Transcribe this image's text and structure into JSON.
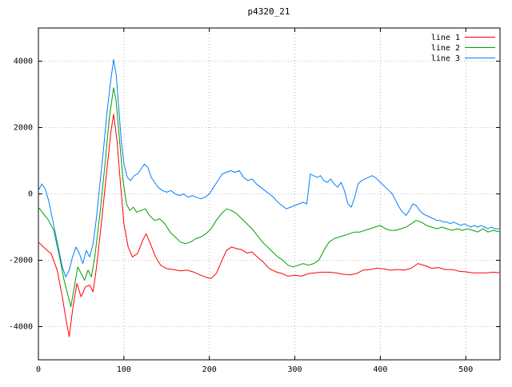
{
  "window": {
    "background": "#ffffff"
  },
  "chart_data": {
    "type": "line",
    "title": "p4320_21",
    "xlabel": "",
    "ylabel": "",
    "xlim": [
      0,
      540
    ],
    "ylim": [
      -5000,
      5000
    ],
    "xticks": [
      0,
      100,
      200,
      300,
      400,
      500
    ],
    "yticks": [
      -4000,
      -2000,
      0,
      2000,
      4000
    ],
    "grid": true,
    "grid_color": "#b8b8b8",
    "border_color": "#000000",
    "legend_position": "top-right",
    "series": [
      {
        "name": "line 1",
        "color": "#ff0000",
        "points": [
          [
            0,
            -1450
          ],
          [
            8,
            -1650
          ],
          [
            15,
            -1800
          ],
          [
            22,
            -2300
          ],
          [
            28,
            -3100
          ],
          [
            33,
            -3900
          ],
          [
            36,
            -4300
          ],
          [
            40,
            -3500
          ],
          [
            45,
            -2700
          ],
          [
            50,
            -3100
          ],
          [
            55,
            -2800
          ],
          [
            60,
            -2750
          ],
          [
            64,
            -2950
          ],
          [
            68,
            -2200
          ],
          [
            74,
            -800
          ],
          [
            80,
            700
          ],
          [
            85,
            1900
          ],
          [
            88,
            2400
          ],
          [
            92,
            1600
          ],
          [
            96,
            300
          ],
          [
            100,
            -900
          ],
          [
            105,
            -1600
          ],
          [
            110,
            -1900
          ],
          [
            116,
            -1800
          ],
          [
            122,
            -1400
          ],
          [
            126,
            -1200
          ],
          [
            131,
            -1500
          ],
          [
            137,
            -1900
          ],
          [
            143,
            -2150
          ],
          [
            150,
            -2250
          ],
          [
            158,
            -2280
          ],
          [
            166,
            -2320
          ],
          [
            174,
            -2300
          ],
          [
            182,
            -2360
          ],
          [
            190,
            -2450
          ],
          [
            197,
            -2520
          ],
          [
            202,
            -2550
          ],
          [
            208,
            -2400
          ],
          [
            214,
            -2050
          ],
          [
            220,
            -1700
          ],
          [
            226,
            -1600
          ],
          [
            232,
            -1650
          ],
          [
            238,
            -1680
          ],
          [
            244,
            -1780
          ],
          [
            250,
            -1750
          ],
          [
            256,
            -1900
          ],
          [
            263,
            -2050
          ],
          [
            270,
            -2250
          ],
          [
            278,
            -2350
          ],
          [
            285,
            -2400
          ],
          [
            292,
            -2480
          ],
          [
            300,
            -2450
          ],
          [
            308,
            -2480
          ],
          [
            316,
            -2400
          ],
          [
            324,
            -2380
          ],
          [
            332,
            -2360
          ],
          [
            340,
            -2360
          ],
          [
            348,
            -2380
          ],
          [
            356,
            -2420
          ],
          [
            364,
            -2440
          ],
          [
            372,
            -2400
          ],
          [
            380,
            -2300
          ],
          [
            388,
            -2280
          ],
          [
            396,
            -2240
          ],
          [
            404,
            -2260
          ],
          [
            412,
            -2300
          ],
          [
            420,
            -2280
          ],
          [
            428,
            -2300
          ],
          [
            436,
            -2240
          ],
          [
            444,
            -2100
          ],
          [
            452,
            -2160
          ],
          [
            460,
            -2240
          ],
          [
            468,
            -2220
          ],
          [
            476,
            -2280
          ],
          [
            484,
            -2280
          ],
          [
            492,
            -2330
          ],
          [
            500,
            -2350
          ],
          [
            508,
            -2380
          ],
          [
            516,
            -2380
          ],
          [
            524,
            -2380
          ],
          [
            532,
            -2360
          ],
          [
            540,
            -2380
          ]
        ]
      },
      {
        "name": "line 2",
        "color": "#00a000",
        "points": [
          [
            0,
            -400
          ],
          [
            6,
            -600
          ],
          [
            12,
            -800
          ],
          [
            18,
            -1100
          ],
          [
            24,
            -1800
          ],
          [
            30,
            -2600
          ],
          [
            35,
            -3100
          ],
          [
            38,
            -3400
          ],
          [
            42,
            -2800
          ],
          [
            46,
            -2200
          ],
          [
            50,
            -2400
          ],
          [
            54,
            -2600
          ],
          [
            58,
            -2300
          ],
          [
            62,
            -2500
          ],
          [
            66,
            -1900
          ],
          [
            72,
            -600
          ],
          [
            78,
            900
          ],
          [
            83,
            2300
          ],
          [
            88,
            3200
          ],
          [
            91,
            2800
          ],
          [
            95,
            1600
          ],
          [
            99,
            400
          ],
          [
            103,
            -300
          ],
          [
            107,
            -500
          ],
          [
            111,
            -400
          ],
          [
            115,
            -550
          ],
          [
            120,
            -500
          ],
          [
            125,
            -450
          ],
          [
            130,
            -650
          ],
          [
            136,
            -800
          ],
          [
            142,
            -750
          ],
          [
            148,
            -900
          ],
          [
            154,
            -1150
          ],
          [
            160,
            -1300
          ],
          [
            166,
            -1450
          ],
          [
            172,
            -1500
          ],
          [
            178,
            -1450
          ],
          [
            184,
            -1350
          ],
          [
            190,
            -1300
          ],
          [
            196,
            -1200
          ],
          [
            202,
            -1050
          ],
          [
            208,
            -800
          ],
          [
            214,
            -600
          ],
          [
            220,
            -450
          ],
          [
            226,
            -500
          ],
          [
            232,
            -600
          ],
          [
            238,
            -750
          ],
          [
            244,
            -900
          ],
          [
            250,
            -1050
          ],
          [
            256,
            -1250
          ],
          [
            262,
            -1450
          ],
          [
            268,
            -1600
          ],
          [
            274,
            -1750
          ],
          [
            280,
            -1900
          ],
          [
            286,
            -2000
          ],
          [
            292,
            -2150
          ],
          [
            298,
            -2200
          ],
          [
            304,
            -2150
          ],
          [
            310,
            -2100
          ],
          [
            316,
            -2150
          ],
          [
            322,
            -2100
          ],
          [
            328,
            -2000
          ],
          [
            334,
            -1700
          ],
          [
            340,
            -1450
          ],
          [
            346,
            -1350
          ],
          [
            352,
            -1300
          ],
          [
            358,
            -1250
          ],
          [
            364,
            -1200
          ],
          [
            370,
            -1150
          ],
          [
            376,
            -1150
          ],
          [
            382,
            -1100
          ],
          [
            388,
            -1050
          ],
          [
            394,
            -1000
          ],
          [
            400,
            -950
          ],
          [
            406,
            -1050
          ],
          [
            412,
            -1100
          ],
          [
            418,
            -1100
          ],
          [
            424,
            -1050
          ],
          [
            430,
            -1000
          ],
          [
            436,
            -900
          ],
          [
            442,
            -800
          ],
          [
            448,
            -850
          ],
          [
            454,
            -950
          ],
          [
            460,
            -1000
          ],
          [
            466,
            -1050
          ],
          [
            472,
            -1000
          ],
          [
            478,
            -1050
          ],
          [
            484,
            -1100
          ],
          [
            490,
            -1050
          ],
          [
            496,
            -1100
          ],
          [
            502,
            -1050
          ],
          [
            508,
            -1100
          ],
          [
            514,
            -1150
          ],
          [
            520,
            -1050
          ],
          [
            526,
            -1150
          ],
          [
            532,
            -1100
          ],
          [
            540,
            -1150
          ]
        ]
      },
      {
        "name": "line 3",
        "color": "#0080ff",
        "points": [
          [
            0,
            100
          ],
          [
            4,
            300
          ],
          [
            8,
            150
          ],
          [
            12,
            -200
          ],
          [
            16,
            -700
          ],
          [
            20,
            -1200
          ],
          [
            24,
            -1700
          ],
          [
            28,
            -2200
          ],
          [
            32,
            -2500
          ],
          [
            36,
            -2300
          ],
          [
            40,
            -1900
          ],
          [
            44,
            -1600
          ],
          [
            48,
            -1800
          ],
          [
            52,
            -2100
          ],
          [
            56,
            -1700
          ],
          [
            60,
            -1900
          ],
          [
            64,
            -1500
          ],
          [
            68,
            -700
          ],
          [
            72,
            300
          ],
          [
            76,
            1300
          ],
          [
            80,
            2400
          ],
          [
            84,
            3300
          ],
          [
            88,
            4050
          ],
          [
            91,
            3600
          ],
          [
            94,
            2600
          ],
          [
            97,
            1600
          ],
          [
            100,
            900
          ],
          [
            104,
            500
          ],
          [
            108,
            400
          ],
          [
            112,
            550
          ],
          [
            116,
            600
          ],
          [
            120,
            750
          ],
          [
            124,
            900
          ],
          [
            128,
            800
          ],
          [
            132,
            500
          ],
          [
            136,
            350
          ],
          [
            140,
            200
          ],
          [
            145,
            100
          ],
          [
            150,
            50
          ],
          [
            155,
            100
          ],
          [
            160,
            0
          ],
          [
            165,
            -50
          ],
          [
            170,
            0
          ],
          [
            175,
            -100
          ],
          [
            180,
            -50
          ],
          [
            185,
            -100
          ],
          [
            190,
            -150
          ],
          [
            195,
            -100
          ],
          [
            200,
            0
          ],
          [
            205,
            200
          ],
          [
            210,
            400
          ],
          [
            215,
            600
          ],
          [
            220,
            650
          ],
          [
            225,
            700
          ],
          [
            230,
            650
          ],
          [
            235,
            700
          ],
          [
            240,
            500
          ],
          [
            245,
            400
          ],
          [
            250,
            450
          ],
          [
            255,
            300
          ],
          [
            260,
            200
          ],
          [
            265,
            100
          ],
          [
            270,
            0
          ],
          [
            275,
            -100
          ],
          [
            280,
            -250
          ],
          [
            285,
            -350
          ],
          [
            290,
            -450
          ],
          [
            295,
            -400
          ],
          [
            300,
            -350
          ],
          [
            305,
            -300
          ],
          [
            310,
            -250
          ],
          [
            314,
            -300
          ],
          [
            318,
            600
          ],
          [
            322,
            550
          ],
          [
            326,
            500
          ],
          [
            330,
            550
          ],
          [
            334,
            400
          ],
          [
            338,
            350
          ],
          [
            342,
            450
          ],
          [
            346,
            300
          ],
          [
            350,
            200
          ],
          [
            354,
            350
          ],
          [
            358,
            100
          ],
          [
            362,
            -300
          ],
          [
            366,
            -400
          ],
          [
            370,
            -100
          ],
          [
            374,
            300
          ],
          [
            378,
            400
          ],
          [
            382,
            450
          ],
          [
            386,
            500
          ],
          [
            390,
            550
          ],
          [
            394,
            500
          ],
          [
            398,
            400
          ],
          [
            402,
            300
          ],
          [
            406,
            200
          ],
          [
            410,
            100
          ],
          [
            414,
            0
          ],
          [
            418,
            -200
          ],
          [
            422,
            -400
          ],
          [
            426,
            -550
          ],
          [
            430,
            -650
          ],
          [
            434,
            -500
          ],
          [
            438,
            -300
          ],
          [
            442,
            -350
          ],
          [
            446,
            -500
          ],
          [
            450,
            -600
          ],
          [
            454,
            -650
          ],
          [
            458,
            -700
          ],
          [
            462,
            -750
          ],
          [
            466,
            -800
          ],
          [
            470,
            -800
          ],
          [
            474,
            -850
          ],
          [
            478,
            -850
          ],
          [
            482,
            -900
          ],
          [
            486,
            -850
          ],
          [
            490,
            -900
          ],
          [
            494,
            -950
          ],
          [
            498,
            -900
          ],
          [
            502,
            -950
          ],
          [
            506,
            -1000
          ],
          [
            510,
            -950
          ],
          [
            514,
            -1000
          ],
          [
            518,
            -950
          ],
          [
            522,
            -1000
          ],
          [
            526,
            -1050
          ],
          [
            530,
            -1000
          ],
          [
            534,
            -1050
          ],
          [
            540,
            -1050
          ]
        ]
      }
    ]
  }
}
